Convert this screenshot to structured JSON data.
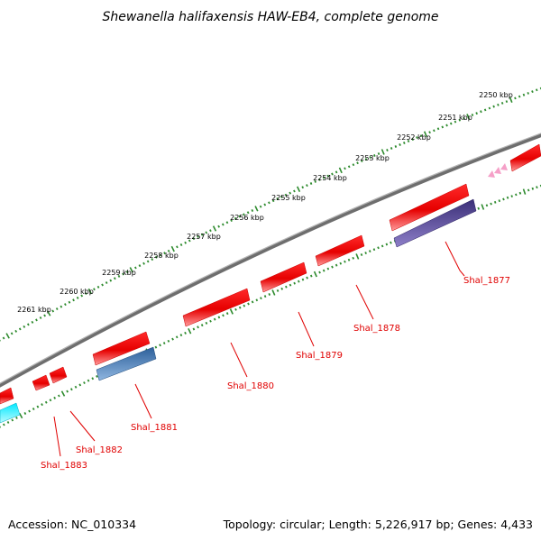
{
  "title": "Shewanella halifaxensis HAW-EB4, complete genome",
  "footer": {
    "accession": "Accession: NC_010334",
    "topology": "Topology: circular; Length: 5,226,917 bp; Genes: 4,433"
  },
  "colors": {
    "backbone": "#7a7a7a",
    "ticks": "#2e8b2e",
    "forward_gene": "#ff0000",
    "label_text": "#e00000",
    "label_line": "#e00000"
  },
  "scale": {
    "unit": "kbp",
    "labels": [
      "2250 kbp",
      "2251 kbp",
      "2252 kbp",
      "2253 kbp",
      "2254 kbp",
      "2255 kbp",
      "2256 kbp",
      "2257 kbp",
      "2258 kbp",
      "2259 kbp",
      "2260 kbp",
      "2261 kbp"
    ]
  },
  "gene_labels": [
    "Shal_1877",
    "Shal_1878",
    "Shal_1879",
    "Shal_1880",
    "Shal_1881",
    "Shal_1882",
    "Shal_1883"
  ]
}
